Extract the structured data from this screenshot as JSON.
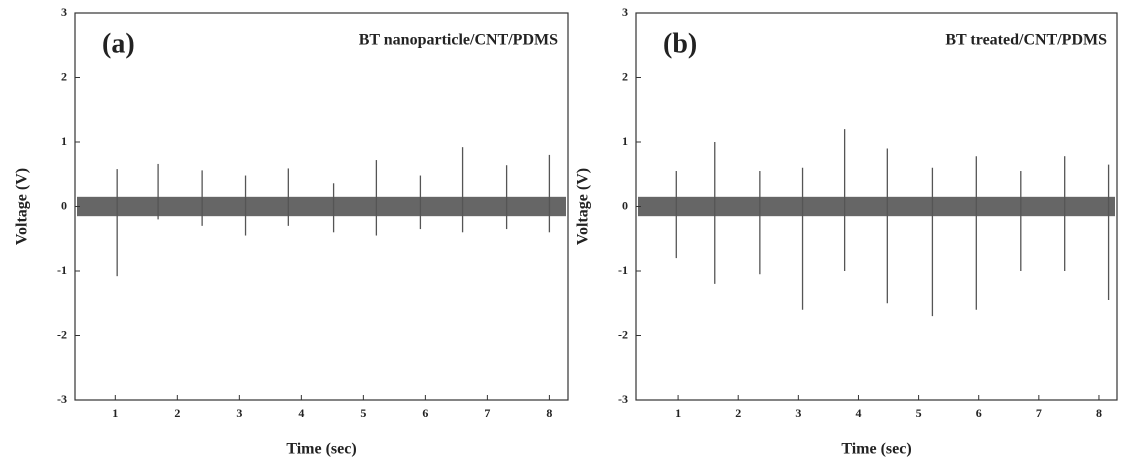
{
  "chart_data": [
    {
      "type": "spike",
      "panel_label": "(a)",
      "title": "BT nanoparticle/CNT/PDMS",
      "x_label": "Time (sec)",
      "y_label": "Voltage (V)",
      "color": "#555555",
      "x": [
        1.03,
        1.69,
        2.4,
        3.1,
        3.79,
        4.52,
        5.21,
        5.92,
        6.6,
        7.31,
        8.0
      ],
      "peaks": [
        0.58,
        0.66,
        0.56,
        0.48,
        0.59,
        0.36,
        0.72,
        0.48,
        0.92,
        0.64,
        0.8
      ],
      "troughs": [
        -1.08,
        -0.2,
        -0.3,
        -0.45,
        -0.3,
        -0.4,
        -0.45,
        -0.35,
        -0.4,
        -0.35,
        -0.4
      ],
      "noise_band": [
        -0.15,
        0.15
      ],
      "xlim": [
        0.35,
        8.3
      ],
      "ylim": [
        -3,
        3
      ],
      "xticks": [
        1,
        2,
        3,
        4,
        5,
        6,
        7,
        8
      ],
      "yticks": [
        -3,
        -2,
        -1,
        0,
        1,
        2,
        3
      ]
    },
    {
      "type": "spike",
      "panel_label": "(b)",
      "title": "BT treated/CNT/PDMS",
      "x_label": "Time (sec)",
      "y_label": "Voltage (V)",
      "color": "#555555",
      "x": [
        0.97,
        1.61,
        2.36,
        3.07,
        3.77,
        4.48,
        5.23,
        5.96,
        6.7,
        7.43,
        8.16
      ],
      "peaks": [
        0.55,
        1.0,
        0.55,
        0.6,
        1.2,
        0.9,
        0.6,
        0.78,
        0.55,
        0.78,
        0.65
      ],
      "troughs": [
        -0.8,
        -1.2,
        -1.05,
        -1.6,
        -1.0,
        -1.5,
        -1.7,
        -1.6,
        -1.0,
        -1.0,
        -1.45
      ],
      "noise_band": [
        -0.15,
        0.15
      ],
      "xlim": [
        0.3,
        8.3
      ],
      "ylim": [
        -3,
        3
      ],
      "xticks": [
        1,
        2,
        3,
        4,
        5,
        6,
        7,
        8
      ],
      "yticks": [
        -3,
        -2,
        -1,
        0,
        1,
        2,
        3
      ]
    }
  ]
}
